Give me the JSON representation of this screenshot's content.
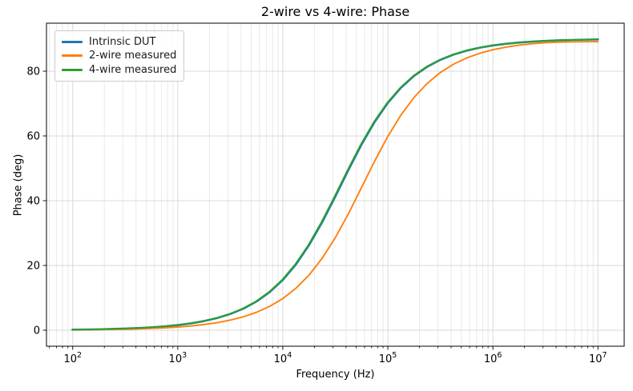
{
  "chart_data": {
    "type": "line",
    "title": "2-wire vs 4-wire: Phase",
    "xlabel": "Frequency (Hz)",
    "ylabel": "Phase (deg)",
    "x_scale": "log",
    "xlim": [
      100,
      10000000
    ],
    "ylim": [
      0,
      90
    ],
    "x_tick_exponents": [
      2,
      3,
      4,
      5,
      6,
      7
    ],
    "y_ticks": [
      0,
      20,
      40,
      60,
      80
    ],
    "grid": "major and minor vertical log gridlines, major horizontal gridlines",
    "legend_position": "upper left",
    "colors": {
      "major_grid": "#d8d8d8",
      "minor_grid": "#e9e9e9",
      "spine": "#000000"
    },
    "x": [
      100,
      133,
      178,
      237,
      316,
      422,
      562,
      750,
      1000,
      1334,
      1778,
      2371,
      3162,
      4217,
      5623,
      7499,
      10000,
      13335,
      17783,
      23714,
      31623,
      42170,
      56234,
      74989,
      100000,
      133352,
      177828,
      237137,
      316228,
      421697,
      562341,
      749894,
      1000000,
      1333521,
      1778279,
      2371374,
      3162278,
      4216965,
      5623413,
      7498942,
      10000000
    ],
    "series": [
      {
        "name": "Intrinsic DUT",
        "color": "#1f77b4",
        "values": [
          0.16,
          0.21,
          0.28,
          0.38,
          0.5,
          0.67,
          0.89,
          1.19,
          1.59,
          2.12,
          2.83,
          3.77,
          5.02,
          6.68,
          8.88,
          11.77,
          15.53,
          20.33,
          26.29,
          33.37,
          41.3,
          49.51,
          57.38,
          64.35,
          70.2,
          74.89,
          78.56,
          81.37,
          83.51,
          85.12,
          86.34,
          87.25,
          87.94,
          88.45,
          88.84,
          89.13,
          89.35,
          89.51,
          89.63,
          89.72,
          89.79
        ]
      },
      {
        "name": "2-wire measured",
        "color": "#ff7f0e",
        "values": [
          0.1,
          0.13,
          0.18,
          0.23,
          0.31,
          0.42,
          0.56,
          0.74,
          0.99,
          1.32,
          1.76,
          2.34,
          3.12,
          4.16,
          5.54,
          7.37,
          9.78,
          12.95,
          17.04,
          22.24,
          28.59,
          36.01,
          44.11,
          52.28,
          59.88,
          66.49,
          71.92,
          76.24,
          79.59,
          82.14,
          84.08,
          85.53,
          86.62,
          87.43,
          88.03,
          88.46,
          88.77,
          88.97,
          89.05,
          89.1,
          89.13
        ]
      },
      {
        "name": "4-wire measured",
        "color": "#2ca02c",
        "values": [
          0.16,
          0.21,
          0.28,
          0.38,
          0.5,
          0.67,
          0.89,
          1.19,
          1.59,
          2.12,
          2.83,
          3.77,
          5.02,
          6.68,
          8.88,
          11.77,
          15.53,
          20.33,
          26.29,
          33.37,
          41.3,
          49.51,
          57.38,
          64.35,
          70.2,
          74.89,
          78.56,
          81.37,
          83.51,
          85.12,
          86.34,
          87.25,
          87.94,
          88.45,
          88.84,
          89.13,
          89.35,
          89.51,
          89.63,
          89.72,
          89.79
        ]
      }
    ]
  }
}
